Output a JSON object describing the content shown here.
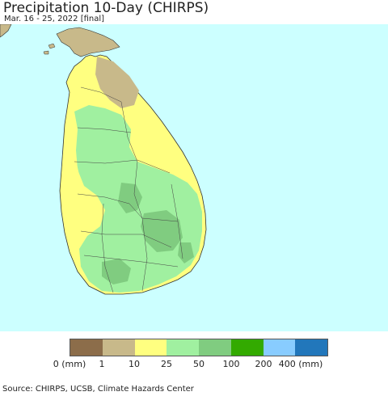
{
  "header": {
    "title": "Precipitation 10-Day (CHIRPS)",
    "subtitle": "Mar. 16 - 25, 2022 [final]"
  },
  "map": {
    "ocean_color": "#ccffff",
    "mainland_india_color": "#c8b98a",
    "region": "Sri Lanka"
  },
  "legend": {
    "colors": [
      "#8c6d4a",
      "#c8b98a",
      "#ffff80",
      "#a0f0a0",
      "#80cc80",
      "#33aa00",
      "#88ccff",
      "#2277bb"
    ],
    "ticks": [
      "0 (mm)",
      "1",
      "10",
      "25",
      "50",
      "100",
      "200",
      "400 (mm)"
    ]
  },
  "footer": {
    "source": "Source: CHIRPS, UCSB, Climate Hazards Center"
  }
}
